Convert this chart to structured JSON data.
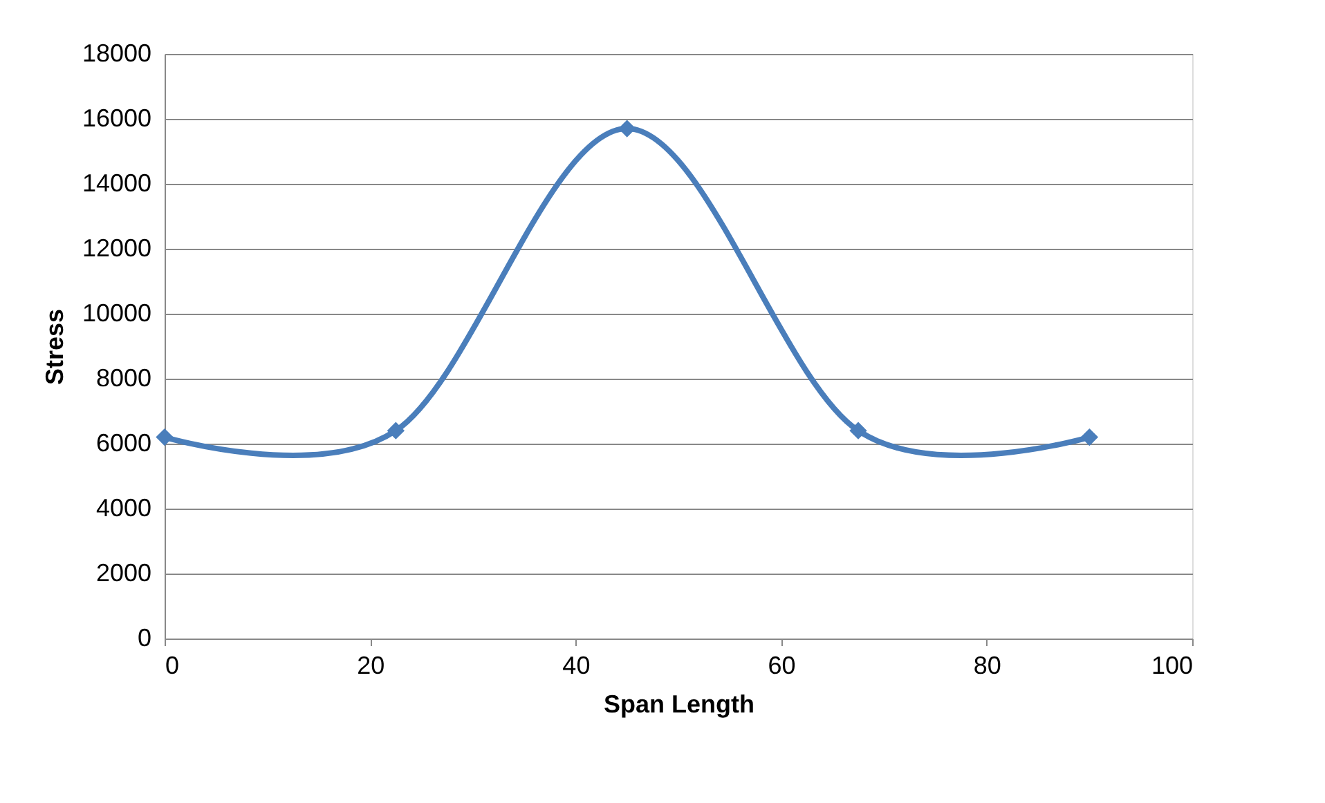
{
  "chart_data": {
    "type": "line",
    "xlabel": "Span Length",
    "ylabel": "Stress",
    "x": [
      0,
      22.5,
      45,
      67.5,
      90
    ],
    "series": [
      {
        "color": "#4a7ebb",
        "values": [
          6200,
          6400,
          15700,
          6400,
          6200
        ]
      }
    ],
    "xlim": [
      0,
      100
    ],
    "xticks": [
      0,
      20,
      40,
      60,
      80,
      100
    ],
    "ylim": [
      0,
      18000
    ],
    "yticks": [
      0,
      2000,
      4000,
      6000,
      8000,
      10000,
      12000,
      14000,
      16000,
      18000
    ],
    "grid": "y",
    "marker": "diamond",
    "line_style": "solid"
  }
}
